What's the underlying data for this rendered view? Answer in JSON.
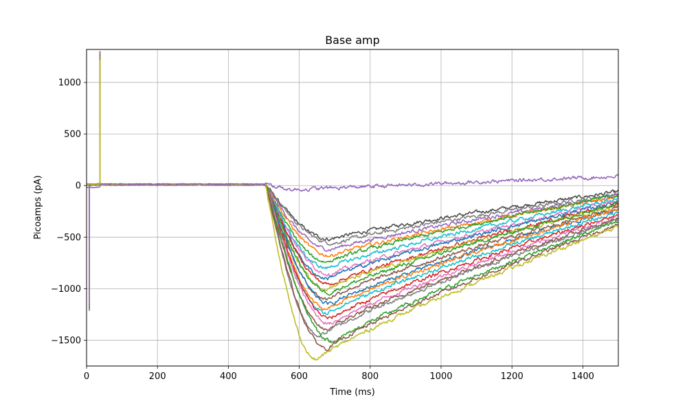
{
  "chart_data": {
    "type": "line",
    "title": "Base amp",
    "xlabel": "Time (ms)",
    "ylabel": "Picoamps (pA)",
    "xlim": [
      0,
      1500
    ],
    "ylim": [
      -1750,
      1320
    ],
    "xticks": [
      0,
      200,
      400,
      600,
      800,
      1000,
      1200,
      1400
    ],
    "yticks": [
      -1500,
      -1000,
      -500,
      0,
      500,
      1000
    ],
    "ytick_labels": [
      "−1500",
      "−1000",
      "−500",
      "0",
      "500",
      "1000"
    ],
    "grid": true,
    "legend": "none",
    "color_cycle": [
      "#1f77b4",
      "#ff7f0e",
      "#2ca02c",
      "#d62728",
      "#9467bd",
      "#8c564b",
      "#e377c2",
      "#7f7f7f",
      "#bcbd22",
      "#17becf"
    ],
    "stim_artifact": {
      "neg_time_ms": 8,
      "neg_value": -1210,
      "pos_time_ms": 38,
      "pos_value": 1300
    },
    "baseline_pA": 10,
    "response_onset_ms": 505,
    "series": [
      {
        "color": "#4c4c4c",
        "peak_pA": -520,
        "peak_ms": 690,
        "end_pA": -60
      },
      {
        "color": "#7f7f7f",
        "peak_pA": -560,
        "peak_ms": 700,
        "end_pA": -80
      },
      {
        "color": "#9467bd",
        "peak_pA": -620,
        "peak_ms": 690,
        "end_pA": -100
      },
      {
        "color": "#ff7f0e",
        "peak_pA": -680,
        "peak_ms": 690,
        "end_pA": -110
      },
      {
        "color": "#2ca02c",
        "peak_pA": -740,
        "peak_ms": 680,
        "end_pA": -90
      },
      {
        "color": "#17becf",
        "peak_pA": -800,
        "peak_ms": 680,
        "end_pA": -130
      },
      {
        "color": "#e377c2",
        "peak_pA": -860,
        "peak_ms": 690,
        "end_pA": -150
      },
      {
        "color": "#1f77b4",
        "peak_pA": -900,
        "peak_ms": 680,
        "end_pA": -160
      },
      {
        "color": "#d62728",
        "peak_pA": -960,
        "peak_ms": 690,
        "end_pA": -180
      },
      {
        "color": "#bcbd22",
        "peak_pA": -1000,
        "peak_ms": 680,
        "end_pA": -190
      },
      {
        "color": "#2ca02c",
        "peak_pA": -1040,
        "peak_ms": 690,
        "end_pA": -170
      },
      {
        "color": "#8c564b",
        "peak_pA": -1100,
        "peak_ms": 680,
        "end_pA": -210
      },
      {
        "color": "#1f77b4",
        "peak_pA": -1150,
        "peak_ms": 690,
        "end_pA": -230
      },
      {
        "color": "#ff7f0e",
        "peak_pA": -1200,
        "peak_ms": 680,
        "end_pA": -220
      },
      {
        "color": "#17becf",
        "peak_pA": -1240,
        "peak_ms": 680,
        "end_pA": -260
      },
      {
        "color": "#d62728",
        "peak_pA": -1290,
        "peak_ms": 690,
        "end_pA": -280
      },
      {
        "color": "#e377c2",
        "peak_pA": -1340,
        "peak_ms": 690,
        "end_pA": -300
      },
      {
        "color": "#8c564b",
        "peak_pA": -1400,
        "peak_ms": 680,
        "end_pA": -320
      },
      {
        "color": "#7f7f7f",
        "peak_pA": -1460,
        "peak_ms": 660,
        "end_pA": -330
      },
      {
        "color": "#2ca02c",
        "peak_pA": -1520,
        "peak_ms": 700,
        "end_pA": -350
      },
      {
        "color": "#8c564b",
        "peak_pA": -1580,
        "peak_ms": 680,
        "end_pA": -380
      },
      {
        "color": "#bcbd22",
        "peak_pA": -1690,
        "peak_ms": 650,
        "end_pA": -400
      },
      {
        "color": "#9467bd",
        "peak_pA": -40,
        "peak_ms": 580,
        "end_pA": 90,
        "flat": true
      }
    ]
  }
}
